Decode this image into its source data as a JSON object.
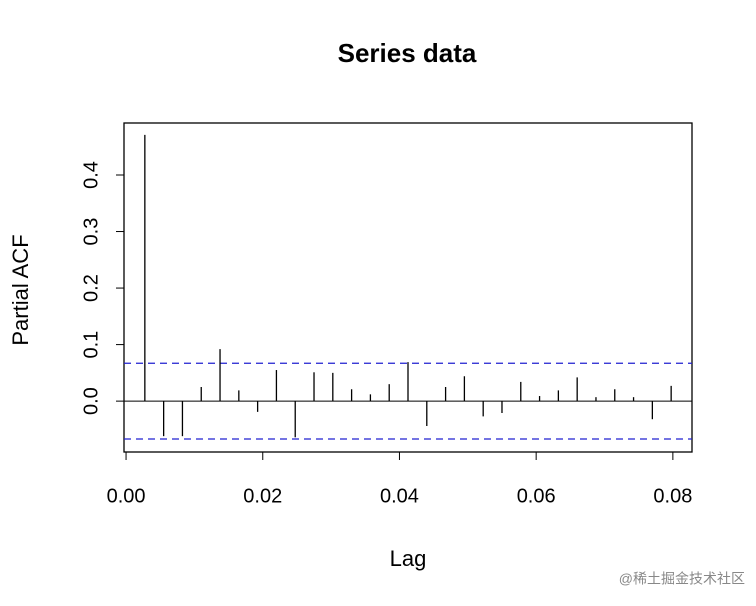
{
  "chart_data": {
    "type": "spike",
    "title": "Series  data",
    "x_label": "Lag",
    "y_label": "Partial ACF",
    "x": [
      0.00275,
      0.0055,
      0.00825,
      0.011,
      0.01375,
      0.0165,
      0.01925,
      0.022,
      0.02475,
      0.0275,
      0.03025,
      0.033,
      0.03575,
      0.0385,
      0.04125,
      0.044,
      0.04675,
      0.0495,
      0.05225,
      0.055,
      0.05775,
      0.0605,
      0.06325,
      0.066,
      0.06875,
      0.0715,
      0.07425,
      0.077,
      0.07975
    ],
    "values": [
      0.471,
      -0.062,
      -0.062,
      0.025,
      0.092,
      0.019,
      -0.019,
      0.055,
      -0.064,
      0.051,
      0.05,
      0.021,
      0.012,
      0.03,
      0.069,
      -0.044,
      0.025,
      0.044,
      -0.027,
      -0.021,
      0.034,
      0.009,
      0.019,
      0.042,
      0.007,
      0.021,
      0.007,
      -0.032,
      0.027
    ],
    "color": "#000000",
    "confidence_bounds": [
      0.067,
      -0.067
    ],
    "bounds_color": "#2020d0",
    "xlim": [
      -0.0003,
      0.0828
    ],
    "ylim": [
      -0.09,
      0.492
    ],
    "xticks": [
      {
        "value": 0,
        "label": "0.00"
      },
      0.02,
      0.04,
      0.06,
      0.08
    ],
    "yticks": [
      {
        "value": 0,
        "label": "0.0"
      },
      0.1,
      0.2,
      0.3,
      0.4
    ],
    "watermark": "@稀土掘金技术社区"
  }
}
